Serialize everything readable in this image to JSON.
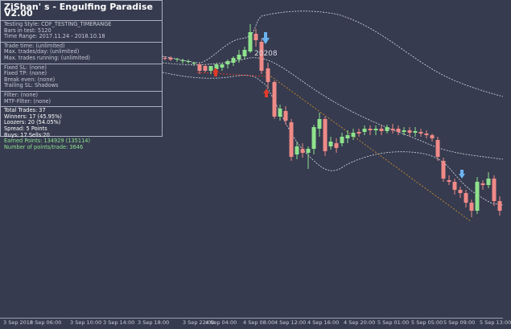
{
  "panel": {
    "title": "ZiShan' s - Engulfing Paradise V2.00",
    "header": [
      "Testing Style: CDF_TESTING_TIMERANGE",
      "Bars in test: 5120",
      "Time Range: 2017.11.24 - 2018.10.18"
    ],
    "limits": [
      "Trade time: (unlimited)",
      "Max. trades/day: (unlimited)",
      "Max. trades running: (unlimited)"
    ],
    "risk": [
      "Fixed SL: (none)",
      "Fixed TP: (none)",
      "Break even: (none)",
      "Trailing SL:  Shadows"
    ],
    "filters": [
      "Filter: (none)",
      "MTF-Filter: (none)"
    ],
    "stats_white": [
      "Total Trades: 37",
      "Winners: 17  (45.95%)",
      "Loozers: 20  (54.05%)",
      "Spread: 5 Points",
      "Buys: 17 Sells:20"
    ],
    "stats_green": [
      "Earned Points: 134929 (135114)",
      "Number of points/trade: 3646"
    ]
  },
  "chart": {
    "price_label": "20208",
    "colors": {
      "background": "#363b4f",
      "bull": "#8fe28c",
      "bear": "#f08a87",
      "envelope": "#d8dce6",
      "trend": "#c98a2e",
      "buy_arrow": "#6ab4f0",
      "sell_arrow": "#e03a2a"
    },
    "time_labels": [
      "3 Sep 2018",
      "3 Sep 06:00",
      "3 Sep 10:00",
      "3 Sep 14:00",
      "3 Sep 18:00",
      "3 Sep 22:00",
      "4 Sep 04:00",
      "4 Sep 08:00",
      "4 Sep 12:00",
      "4 Sep 16:00",
      "4 Sep 20:00",
      "5 Sep 01:00",
      "5 Sep 05:00",
      "5 Sep 09:00",
      "5 Sep 13:00"
    ]
  }
}
